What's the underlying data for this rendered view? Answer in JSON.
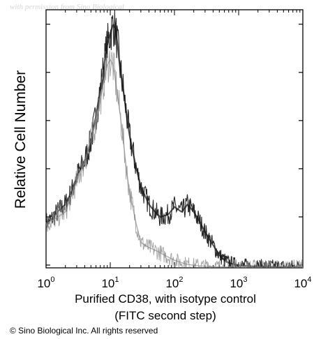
{
  "watermark": "with permission from Sino Biological",
  "copyright": "© Sino Biological Inc. All rights reserved",
  "chart_data": {
    "type": "line",
    "title": "",
    "xlabel_line1": "Purified CD38, with isotype control",
    "xlabel_line2": "(FITC second step)",
    "ylabel": "Relative Cell Number",
    "x_scale": "log",
    "xlim": [
      1,
      10000
    ],
    "ylim": [
      0,
      1
    ],
    "xticks": [
      {
        "base": "10",
        "exp": "0",
        "value": 1
      },
      {
        "base": "10",
        "exp": "1",
        "value": 10
      },
      {
        "base": "10",
        "exp": "2",
        "value": 100
      },
      {
        "base": "10",
        "exp": "3",
        "value": 1000
      },
      {
        "base": "10",
        "exp": "4",
        "value": 10000
      }
    ],
    "grid": false,
    "legend": false,
    "series": [
      {
        "color": "#111111",
        "x": [
          1,
          1.2,
          1.5,
          2,
          2.5,
          3,
          4,
          5,
          6,
          7,
          8,
          9,
          10,
          11,
          12,
          13,
          14,
          16,
          18,
          20,
          25,
          30,
          40,
          50,
          60,
          80,
          100,
          130,
          160,
          200,
          250,
          300,
          400,
          500,
          600,
          700,
          800,
          1000,
          1300,
          1600,
          2000,
          3000,
          5000,
          10000
        ],
        "y": [
          0.18,
          0.19,
          0.22,
          0.25,
          0.3,
          0.36,
          0.42,
          0.5,
          0.6,
          0.7,
          0.8,
          0.88,
          0.92,
          0.96,
          0.94,
          0.88,
          0.8,
          0.7,
          0.6,
          0.52,
          0.4,
          0.32,
          0.25,
          0.22,
          0.2,
          0.21,
          0.24,
          0.22,
          0.25,
          0.22,
          0.18,
          0.14,
          0.09,
          0.05,
          0.03,
          0.02,
          0.015,
          0.01,
          0.008,
          0.006,
          0.005,
          0.004,
          0.003,
          0.003
        ]
      },
      {
        "color": "#8c8c8c",
        "x": [
          1,
          2,
          3,
          4,
          5,
          6,
          7,
          8,
          9,
          10,
          11,
          12,
          14,
          16,
          18,
          20,
          25,
          30,
          40,
          50,
          70,
          100,
          150,
          200,
          300,
          500,
          1000,
          10000
        ],
        "y": [
          0.17,
          0.22,
          0.34,
          0.42,
          0.5,
          0.58,
          0.66,
          0.74,
          0.8,
          0.82,
          0.8,
          0.74,
          0.62,
          0.5,
          0.38,
          0.3,
          0.18,
          0.1,
          0.08,
          0.07,
          0.05,
          0.03,
          0.015,
          0.01,
          0.006,
          0.004,
          0.003,
          0.003
        ]
      }
    ]
  }
}
